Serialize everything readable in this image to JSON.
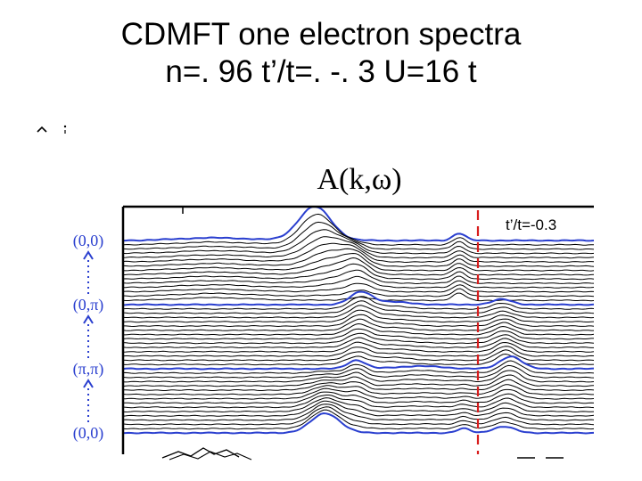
{
  "slide": {
    "title_line1": "CDMFT one electron spectra",
    "title_line2": "n=. 96 t’/t=. -. 3 U=16 t"
  },
  "chart_data": {
    "type": "line",
    "title": "A(k,ω)",
    "annotation": "t’/t=-0.3",
    "y_path_labels": [
      "(0,0)",
      "(0,π)",
      "(π,π)",
      "(0,0)"
    ],
    "num_curves": 46,
    "highlighted_curve_indices": [
      0,
      15,
      30,
      45
    ],
    "colors": {
      "curve": "#000000",
      "highlight": "#2a3fcf",
      "marker_line": "#d81e1e",
      "path_label": "#2a3fcf",
      "frame": "#000000"
    },
    "grid": false,
    "legend": "none"
  }
}
